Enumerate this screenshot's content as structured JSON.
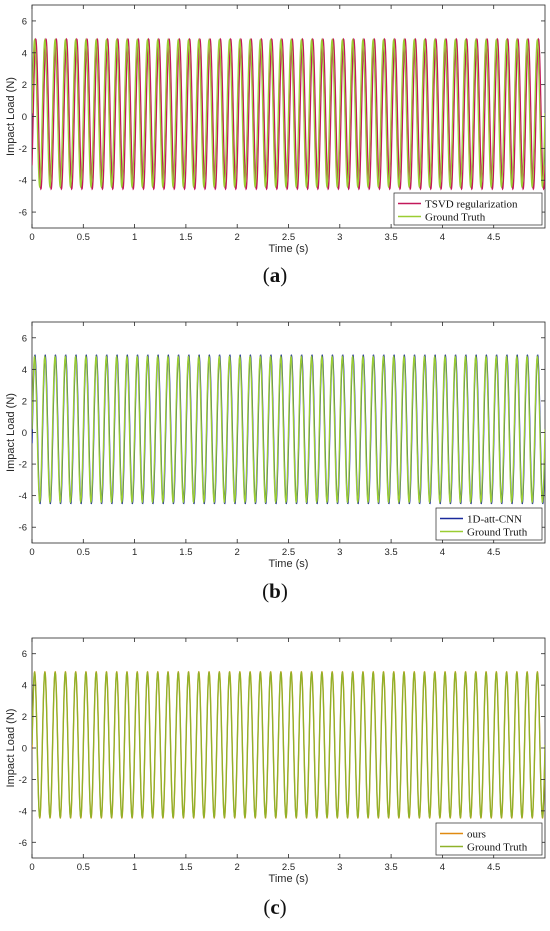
{
  "chart_data": [
    {
      "type": "line",
      "panel_label": "a",
      "xlabel": "Time (s)",
      "ylabel": "Impact Load (N)",
      "xlim": [
        0,
        5
      ],
      "ylim": [
        -7,
        7
      ],
      "xticks": [
        "0",
        "0.5",
        "1",
        "1.5",
        "2",
        "2.5",
        "3",
        "3.5",
        "4",
        "4.5"
      ],
      "yticks": [
        "-6",
        "-4",
        "-2",
        "0",
        "2",
        "4",
        "6"
      ],
      "grid": false,
      "legend_position": "bottom-right",
      "series": [
        {
          "name": "TSVD regularization",
          "color": "#c2185b",
          "kind": "sinusoid",
          "frequency_hz": 10,
          "amplitude": 4.7,
          "offset": 0.15,
          "phase_shift_s": 0.012
        },
        {
          "name": "Ground Truth",
          "color": "#9acd32",
          "kind": "sinusoid",
          "frequency_hz": 10,
          "amplitude": 4.6,
          "offset": 0.2,
          "phase_shift_s": 0
        }
      ]
    },
    {
      "type": "line",
      "panel_label": "b",
      "xlabel": "Time (s)",
      "ylabel": "Impact Load (N)",
      "xlim": [
        0,
        5
      ],
      "ylim": [
        -7,
        7
      ],
      "xticks": [
        "0",
        "0.5",
        "1",
        "1.5",
        "2",
        "2.5",
        "3",
        "3.5",
        "4",
        "4.5"
      ],
      "yticks": [
        "-6",
        "-4",
        "-2",
        "0",
        "2",
        "4",
        "6"
      ],
      "grid": false,
      "legend_position": "bottom-right",
      "series": [
        {
          "name": "1D-att-CNN",
          "color": "#1a2a9c",
          "kind": "sinusoid",
          "frequency_hz": 10,
          "amplitude": 4.7,
          "offset": 0.2,
          "phase_shift_s": 0.003
        },
        {
          "name": "Ground Truth",
          "color": "#9acd32",
          "kind": "sinusoid",
          "frequency_hz": 10,
          "amplitude": 4.6,
          "offset": 0.2,
          "phase_shift_s": 0
        }
      ]
    },
    {
      "type": "line",
      "panel_label": "c",
      "xlabel": "Time (s)",
      "ylabel": "Impact Load (N)",
      "xlim": [
        0,
        5
      ],
      "ylim": [
        -7,
        7
      ],
      "xticks": [
        "0",
        "0.5",
        "1",
        "1.5",
        "2",
        "2.5",
        "3",
        "3.5",
        "4",
        "4.5"
      ],
      "yticks": [
        "-6",
        "-4",
        "-2",
        "0",
        "2",
        "4",
        "6"
      ],
      "grid": false,
      "legend_position": "bottom-right",
      "series": [
        {
          "name": "ours",
          "color": "#e08a10",
          "kind": "sinusoid",
          "frequency_hz": 10,
          "amplitude": 4.65,
          "offset": 0.2,
          "phase_shift_s": 0.001
        },
        {
          "name": "Ground Truth",
          "color": "#8fb22a",
          "kind": "sinusoid",
          "frequency_hz": 10,
          "amplitude": 4.6,
          "offset": 0.2,
          "phase_shift_s": 0
        }
      ]
    }
  ]
}
